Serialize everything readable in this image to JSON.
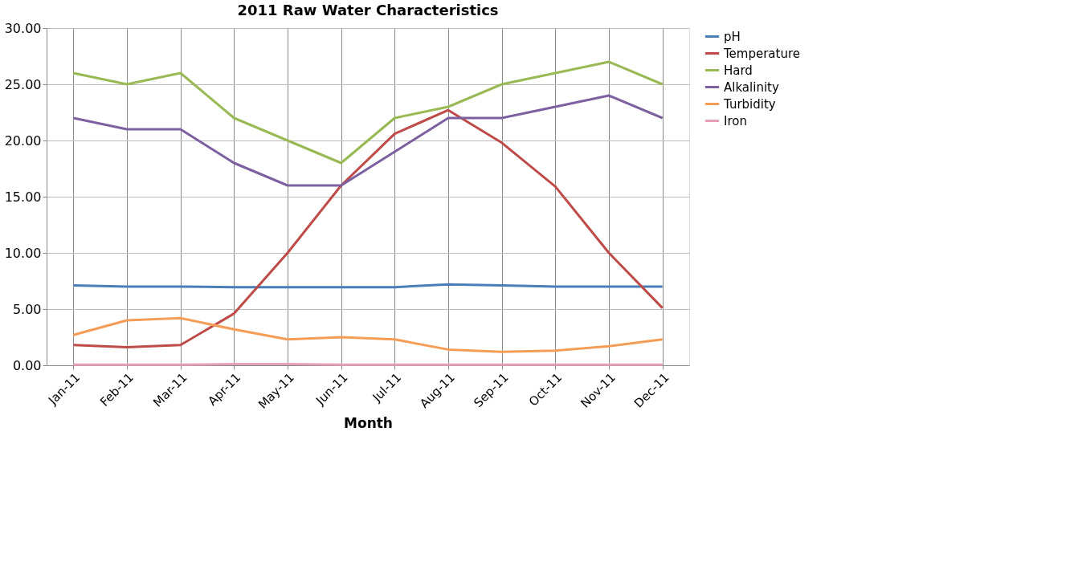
{
  "chart_data": {
    "type": "line",
    "title": "2011 Raw Water Characteristics",
    "xlabel": "Month",
    "categories": [
      "Jan-11",
      "Feb-11",
      "Mar-11",
      "Apr-11",
      "May-11",
      "Jun-11",
      "Jul-11",
      "Aug-11",
      "Sep-11",
      "Oct-11",
      "Nov-11",
      "Dec-11"
    ],
    "series": [
      {
        "name": "pH",
        "color": "#4a7ebb",
        "values": [
          7.1,
          7.0,
          7.0,
          6.95,
          6.95,
          6.95,
          6.95,
          7.2,
          7.1,
          7.0,
          7.0,
          7.0
        ]
      },
      {
        "name": "Temperature",
        "color": "#be4b48",
        "values": [
          1.8,
          1.6,
          1.8,
          4.6,
          10.0,
          16.0,
          20.6,
          22.7,
          19.8,
          15.9,
          10.0,
          5.1
        ]
      },
      {
        "name": "Hard",
        "color": "#98b954",
        "values": [
          26,
          25,
          26,
          22,
          20,
          18,
          22,
          23,
          25,
          26,
          27,
          25
        ]
      },
      {
        "name": "Alkalinity",
        "color": "#7d60a0",
        "values": [
          22,
          21,
          21,
          18,
          16,
          16,
          19,
          22,
          22,
          23,
          24,
          22
        ]
      },
      {
        "name": "Turbidity",
        "color": "#f59d56",
        "values": [
          2.7,
          4.0,
          4.2,
          3.2,
          2.3,
          2.5,
          2.3,
          1.4,
          1.2,
          1.3,
          1.7,
          2.3
        ]
      },
      {
        "name": "Iron",
        "color": "#e6a0b8",
        "values": [
          0.05,
          0.05,
          0.05,
          0.1,
          0.1,
          0.05,
          0.05,
          0.05,
          0.05,
          0.05,
          0.05,
          0.05
        ]
      }
    ],
    "ylim": [
      0,
      30
    ],
    "yticks": [
      {
        "value": 0,
        "label": "0.00"
      },
      {
        "value": 5,
        "label": "5.00"
      },
      {
        "value": 10,
        "label": "10.00"
      },
      {
        "value": 15,
        "label": "15.00"
      },
      {
        "value": 20,
        "label": "20.00"
      },
      {
        "value": 25,
        "label": "25.00"
      },
      {
        "value": 30,
        "label": "30.00"
      }
    ],
    "grid": true,
    "legend": "right",
    "marker": "none",
    "line_style": "solid"
  }
}
